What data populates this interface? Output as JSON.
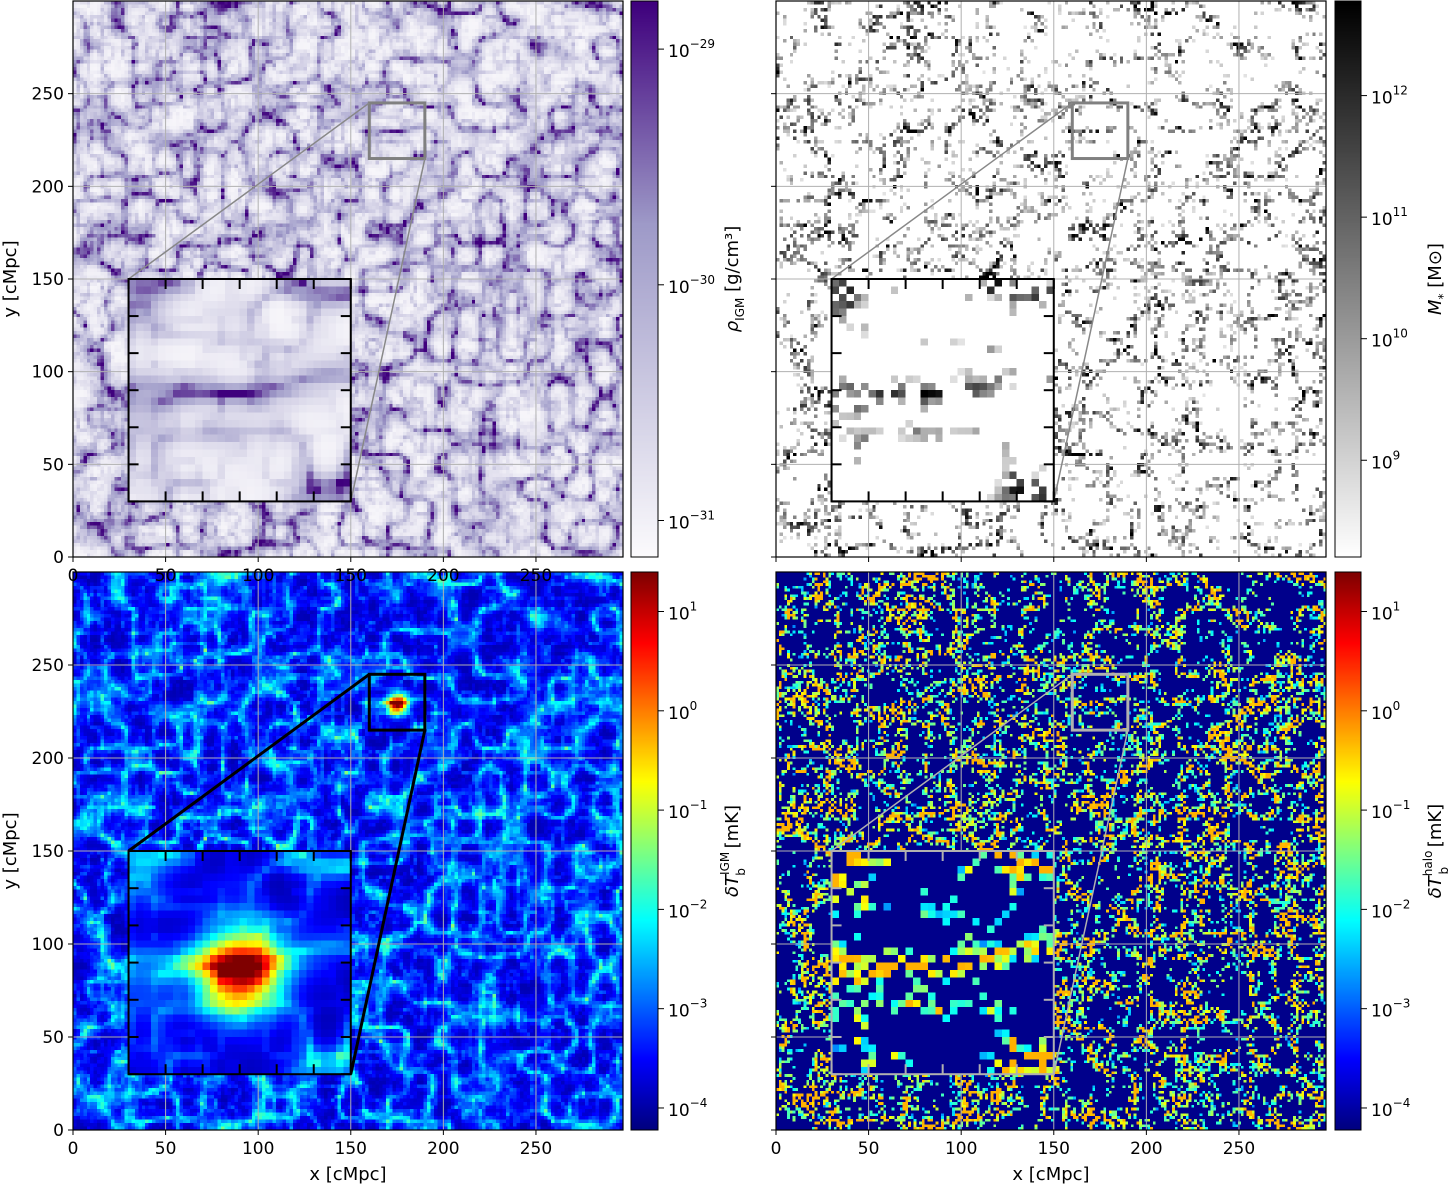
{
  "figure": {
    "panels": [
      {
        "id": "igm-density",
        "colormap": "purples",
        "cbar_label_main": "ρ",
        "cbar_label_sub": "IGM",
        "cbar_label_unit": " [g/cm³]",
        "cbar_ticks": [
          {
            "base": "10",
            "exp": "−29"
          },
          {
            "base": "10",
            "exp": "−30"
          },
          {
            "base": "10",
            "exp": "−31"
          }
        ],
        "inset_edge_color": "#000000",
        "zoom_line_color": "#888888",
        "zoom_box_color": "#808080"
      },
      {
        "id": "stellar-mass",
        "colormap": "greys",
        "cbar_label_main": "M",
        "cbar_label_sub": "*",
        "cbar_label_unit": " [M⊙]",
        "cbar_ticks": [
          {
            "base": "10",
            "exp": "12"
          },
          {
            "base": "10",
            "exp": "11"
          },
          {
            "base": "10",
            "exp": "10"
          },
          {
            "base": "10",
            "exp": "9"
          }
        ],
        "inset_edge_color": "#000000",
        "zoom_line_color": "#888888",
        "zoom_box_color": "#808080"
      },
      {
        "id": "dtb-igm",
        "colormap": "jet",
        "cbar_label_main": "δT",
        "cbar_label_sub": "b",
        "cbar_label_sup": "IGM",
        "cbar_label_unit": " [mK]",
        "cbar_ticks": [
          {
            "base": "10",
            "exp": "1"
          },
          {
            "base": "10",
            "exp": "0"
          },
          {
            "base": "10",
            "exp": "−1"
          },
          {
            "base": "10",
            "exp": "−2"
          },
          {
            "base": "10",
            "exp": "−3"
          },
          {
            "base": "10",
            "exp": "−4"
          }
        ],
        "inset_edge_color": "#000000",
        "zoom_line_color": "#000000",
        "zoom_box_color": "#000000"
      },
      {
        "id": "dtb-halo",
        "colormap": "jet",
        "cbar_label_main": "δT",
        "cbar_label_sub": "b",
        "cbar_label_sup": "halo",
        "cbar_label_unit": " [mK]",
        "cbar_ticks": [
          {
            "base": "10",
            "exp": "1"
          },
          {
            "base": "10",
            "exp": "0"
          },
          {
            "base": "10",
            "exp": "−1"
          },
          {
            "base": "10",
            "exp": "−2"
          },
          {
            "base": "10",
            "exp": "−3"
          },
          {
            "base": "10",
            "exp": "−4"
          }
        ],
        "inset_edge_color": "#b0b0b0",
        "zoom_line_color": "#b0b0b0",
        "zoom_box_color": "#b0b0b0"
      }
    ]
  },
  "chart_data": [
    {
      "type": "heatmap",
      "panel": "top-left",
      "xlabel": "",
      "ylabel": "y [cMpc]",
      "xlim": [
        0,
        297
      ],
      "ylim": [
        0,
        300
      ],
      "x_ticks": [
        "0",
        "50",
        "100",
        "150",
        "200",
        "250"
      ],
      "y_ticks": [
        "0",
        "50",
        "100",
        "150",
        "200",
        "250"
      ],
      "colorbar": {
        "label": "ρ_IGM [g/cm³]",
        "scale": "log",
        "range": [
          7e-32,
          1.6e-29
        ]
      },
      "zoom_region": {
        "x": [
          160,
          190
        ],
        "y": [
          215,
          245
        ]
      },
      "inset_extent": {
        "x": [
          30,
          150
        ],
        "y": [
          30,
          150
        ]
      },
      "grid": true
    },
    {
      "type": "heatmap",
      "panel": "top-right",
      "xlabel": "",
      "ylabel": "",
      "xlim": [
        0,
        297
      ],
      "ylim": [
        0,
        300
      ],
      "colorbar": {
        "label": "M_* [M_⊙]",
        "scale": "log",
        "range": [
          160000000.0,
          6000000000000.0
        ]
      },
      "zoom_region": {
        "x": [
          160,
          190
        ],
        "y": [
          215,
          245
        ]
      },
      "inset_extent": {
        "x": [
          30,
          150
        ],
        "y": [
          30,
          150
        ]
      },
      "grid": true
    },
    {
      "type": "heatmap",
      "panel": "bottom-left",
      "xlabel": "x [cMpc]",
      "ylabel": "y [cMpc]",
      "xlim": [
        0,
        297
      ],
      "ylim": [
        0,
        300
      ],
      "x_ticks": [
        "0",
        "50",
        "100",
        "150",
        "200",
        "250"
      ],
      "y_ticks": [
        "0",
        "50",
        "100",
        "150",
        "200",
        "250"
      ],
      "colorbar": {
        "label": "δT_b^IGM [mK]",
        "scale": "log",
        "range": [
          6e-05,
          25
        ]
      },
      "zoom_region": {
        "x": [
          160,
          190
        ],
        "y": [
          215,
          245
        ]
      },
      "inset_extent": {
        "x": [
          30,
          150
        ],
        "y": [
          30,
          150
        ]
      },
      "grid": true
    },
    {
      "type": "heatmap",
      "panel": "bottom-right",
      "xlabel": "x [cMpc]",
      "ylabel": "",
      "xlim": [
        0,
        297
      ],
      "ylim": [
        0,
        300
      ],
      "x_ticks": [
        "0",
        "50",
        "100",
        "150",
        "200",
        "250"
      ],
      "colorbar": {
        "label": "δT_b^halo [mK]",
        "scale": "log",
        "range": [
          6e-05,
          25
        ]
      },
      "zoom_region": {
        "x": [
          160,
          190
        ],
        "y": [
          215,
          245
        ]
      },
      "inset_extent": {
        "x": [
          30,
          150
        ],
        "y": [
          30,
          150
        ]
      },
      "grid": true
    }
  ]
}
